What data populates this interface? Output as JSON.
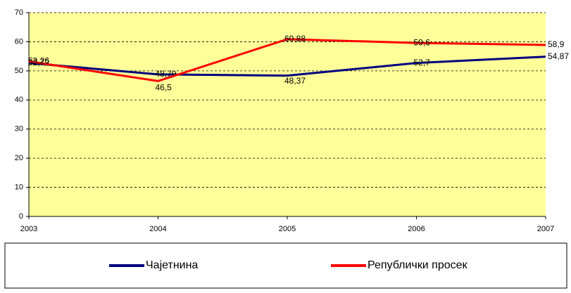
{
  "chart_data": {
    "type": "line",
    "categories": [
      "2003",
      "2004",
      "2005",
      "2006",
      "2007"
    ],
    "series": [
      {
        "name": "Чајетнина",
        "color": "#000080",
        "values": [
          52.72,
          48.79,
          48.37,
          52.7,
          54.87
        ],
        "value_labels": [
          "52,72",
          "48,79",
          "48,37",
          "52,7",
          "54,87"
        ]
      },
      {
        "name": "Републички просек",
        "color": "#ff0000",
        "values": [
          53.26,
          46.5,
          60.88,
          59.6,
          58.9
        ],
        "value_labels": [
          "53,26",
          "46,5",
          "60,88",
          "59,6",
          "58,9"
        ]
      }
    ],
    "ylim": [
      0,
      70
    ],
    "yticks": [
      0,
      10,
      20,
      30,
      40,
      50,
      60,
      70
    ],
    "grid": true
  }
}
